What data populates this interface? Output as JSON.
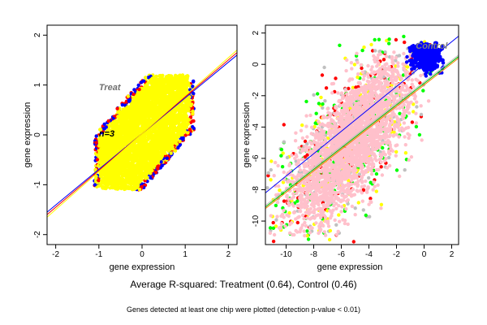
{
  "caption_main": "Average R-squared: Treatment (0.64), Control (0.46)",
  "caption_sub": "Genes detected at least one chip were plotted (detection p-value < 0.01)",
  "chart_data": [
    {
      "type": "scatter",
      "xlabel": "gene expression",
      "ylabel": "gene expression",
      "xlim": [
        -2.2,
        2.2
      ],
      "ylim": [
        -2.2,
        2.2
      ],
      "xticks": [
        -2,
        -1,
        0,
        1,
        2
      ],
      "yticks": [
        -2,
        -1,
        0,
        1,
        2
      ],
      "annotations": [
        {
          "text": "Treat",
          "x": -1.0,
          "y": 0.9,
          "color": "#707070"
        },
        {
          "text": "n=3",
          "x": -1.0,
          "y": -0.03,
          "color": "#000000"
        }
      ],
      "series_colors": [
        "#0000ff",
        "#ff0000",
        "#ffff00"
      ],
      "point_cloud": {
        "x_range": [
          -1.1,
          1.2
        ],
        "y_range": [
          -1.1,
          1.2
        ],
        "shape": "diamond"
      },
      "fit_lines": [
        {
          "color": "#0000ff",
          "p1": [
            -2.2,
            -1.55
          ],
          "p2": [
            2.2,
            1.6
          ]
        },
        {
          "color": "#ff0000",
          "p1": [
            -2.2,
            -1.6
          ],
          "p2": [
            2.2,
            1.65
          ]
        },
        {
          "color": "#ffff00",
          "p1": [
            -2.2,
            -1.65
          ],
          "p2": [
            2.2,
            1.7
          ]
        }
      ],
      "grid": false
    },
    {
      "type": "scatter",
      "xlabel": "gene expression",
      "ylabel": "gene expression",
      "xlim": [
        -11.5,
        2.5
      ],
      "ylim": [
        -11.5,
        2.5
      ],
      "xticks": [
        -10,
        -8,
        -6,
        -4,
        -2,
        0,
        2
      ],
      "yticks": [
        -10,
        -8,
        -6,
        -4,
        -2,
        0,
        2
      ],
      "annotations": [
        {
          "text": "Control",
          "x": -0.6,
          "y": 1.0,
          "color": "#808080"
        }
      ],
      "series_colors": [
        "#ffc0cb",
        "#00ff00",
        "#ff0000",
        "#ffff00",
        "#c0c0c0",
        "#0000ff"
      ],
      "point_cloud": {
        "x_range": [
          -11.5,
          1.5
        ],
        "y_range": [
          -11.5,
          1.5
        ],
        "dense_center": [
          -5.5,
          -4.5
        ],
        "blue_cluster": [
          0.3,
          0.5
        ]
      },
      "fit_lines": [
        {
          "color": "#0000ff",
          "p1": [
            -11.5,
            -8.2
          ],
          "p2": [
            2.5,
            1.8
          ]
        },
        {
          "color": "#c0c0c0",
          "p1": [
            -11.5,
            -9.0
          ],
          "p2": [
            2.5,
            0.6
          ]
        },
        {
          "color": "#00c000",
          "p1": [
            -11.5,
            -9.1
          ],
          "p2": [
            2.5,
            0.5
          ]
        },
        {
          "color": "#ff8000",
          "p1": [
            -11.5,
            -9.2
          ],
          "p2": [
            2.5,
            0.4
          ]
        }
      ],
      "grid": false
    }
  ]
}
